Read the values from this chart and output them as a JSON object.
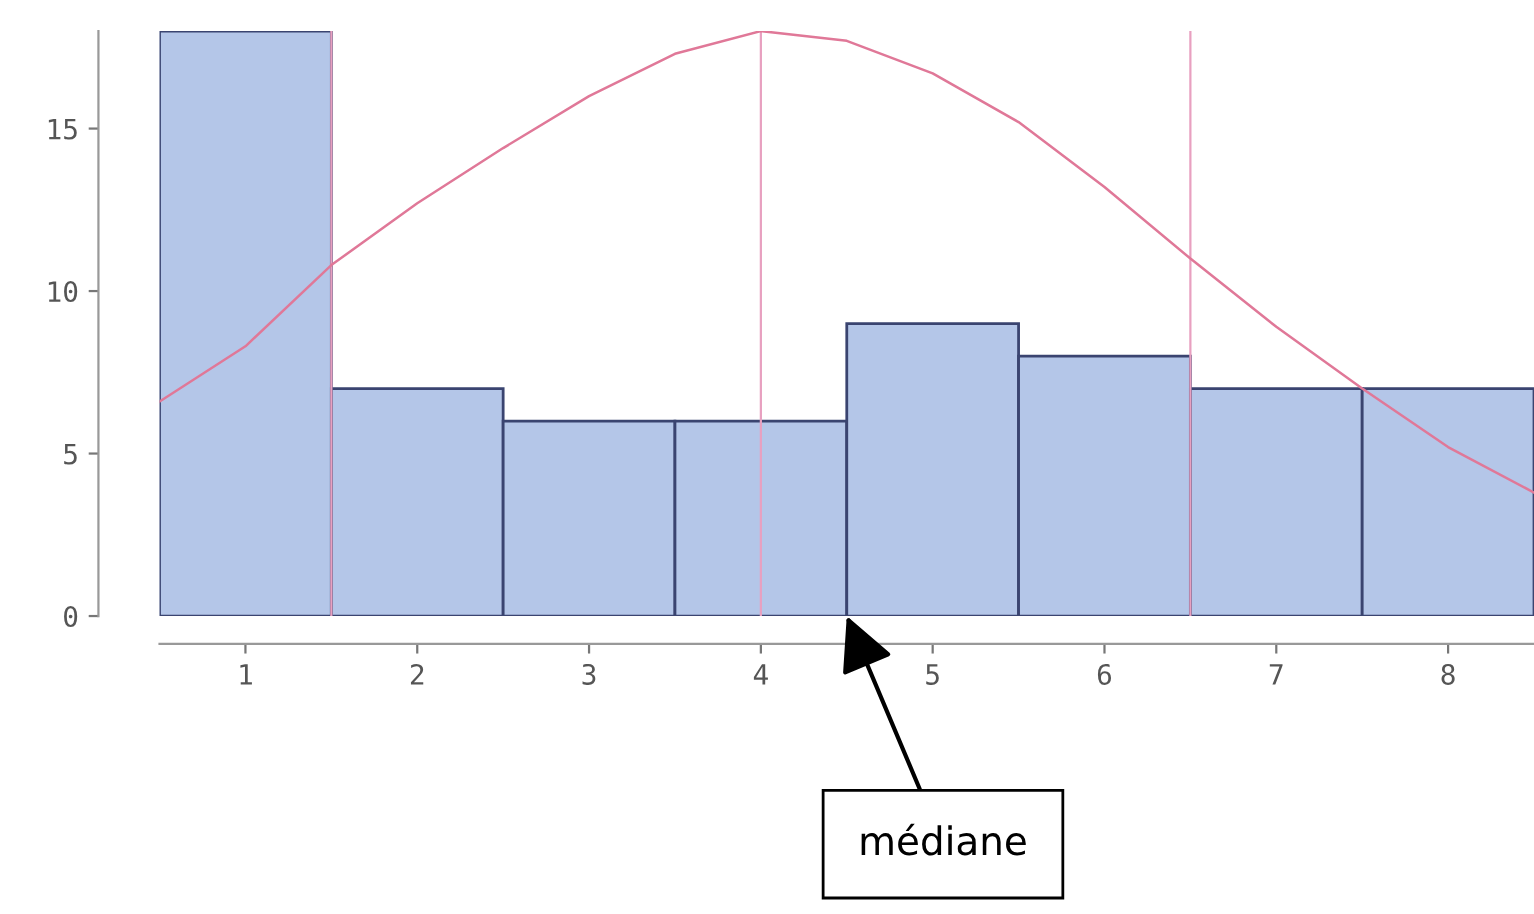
{
  "chart_data": {
    "type": "histogram",
    "bins": [
      0.5,
      1.5,
      2.5,
      3.5,
      4.5,
      5.5,
      6.5,
      7.5,
      8.5
    ],
    "series": [
      {
        "color": "#b4c6e8",
        "values": [
          18,
          7,
          6,
          6,
          9,
          8,
          7,
          7
        ]
      },
      {
        "type": "line",
        "color": "#e07898",
        "x": [
          0.5,
          1,
          1.5,
          2,
          2.5,
          3,
          3.5,
          4,
          4.5,
          5,
          5.5,
          6,
          6.5,
          7,
          7.5,
          8,
          8.5
        ],
        "values": [
          6.6,
          8.3,
          10.8,
          12.7,
          14.4,
          16.0,
          17.3,
          18,
          17.7,
          16.7,
          15.2,
          13.2,
          11.0,
          8.9,
          7.0,
          5.2,
          3.8
        ]
      }
    ],
    "xlim": [
      0.5,
      8.5
    ],
    "xticks": [
      1,
      2,
      3,
      4,
      5,
      6,
      7,
      8
    ],
    "ylim": [
      0,
      18
    ],
    "yticks": [
      0,
      5,
      10,
      15
    ],
    "ref_lines": [
      {
        "axis": "x",
        "value": 1.5,
        "color": "#e8a0c0"
      },
      {
        "axis": "x",
        "value": 4,
        "color": "#e8a0c0"
      },
      {
        "axis": "x",
        "value": 6.5,
        "color": "#e8a0c0"
      }
    ],
    "annotations": [
      {
        "text": "médiane",
        "x": 4.5,
        "y": 0
      }
    ],
    "grid": false,
    "legend": false
  }
}
